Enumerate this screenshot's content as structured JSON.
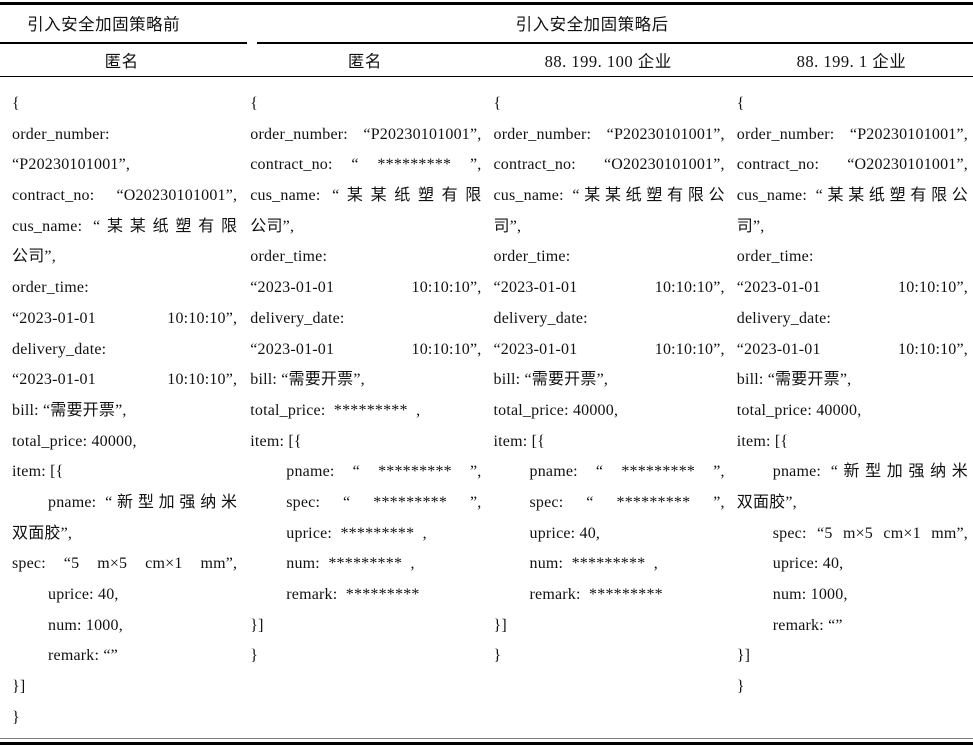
{
  "header": {
    "group_before": "引入安全加固策略前",
    "group_after": "引入安全加固策略后",
    "subheaders": [
      "匿名",
      "匿名",
      "88. 199. 100 企业",
      "88. 199. 1 企业"
    ]
  },
  "columns": [
    {
      "id": "before-anonymous",
      "lines": [
        {
          "t": "{"
        },
        {
          "t": "order_number:"
        },
        {
          "t": "“P20230101001”,"
        },
        {
          "t": "contract_no: “O20230101001”,",
          "j": true
        },
        {
          "t": "cus_name: “某某纸塑有限",
          "j": true
        },
        {
          "t": "公司”,"
        },
        {
          "t": "order_time:"
        },
        {
          "t": "“2023-01-01 10:10:10”,",
          "j": true
        },
        {
          "t": "delivery_date:"
        },
        {
          "t": "“2023-01-01 10:10:10”,",
          "j": true
        },
        {
          "t": "bill: “需要开票”,"
        },
        {
          "t": "total_price: 40000,"
        },
        {
          "t": "item: [{"
        },
        {
          "t": "pname: “新型加强纳米",
          "in": true,
          "j": true
        },
        {
          "t": "双面胶”,"
        },
        {
          "t": "spec: “5 m×5 cm×1 mm”,",
          "j": true
        },
        {
          "t": "uprice: 40,",
          "in": true
        },
        {
          "t": "num: 1000,",
          "in": true
        },
        {
          "t": "remark: “”",
          "in": true
        },
        {
          "t": "}]"
        },
        {
          "t": "}"
        }
      ]
    },
    {
      "id": "after-anonymous",
      "lines": [
        {
          "t": "{"
        },
        {
          "t": "order_number: “P20230101001”,",
          "j": true
        },
        {
          "t": "contract_no: “ ********* ”,",
          "j": true
        },
        {
          "t": "cus_name: “某某纸塑有限",
          "j": true
        },
        {
          "t": "公司”,"
        },
        {
          "t": "order_time:"
        },
        {
          "t": "“2023-01-01 10:10:10”,",
          "j": true
        },
        {
          "t": "delivery_date:"
        },
        {
          "t": "“2023-01-01 10:10:10”,",
          "j": true
        },
        {
          "t": "bill: “需要开票”,"
        },
        {
          "t": "total_price:  *********  ,"
        },
        {
          "t": "item: [{"
        },
        {
          "t": "pname: “ ********* ”,",
          "in": true,
          "j": true
        },
        {
          "t": "spec: “ ********* ”,",
          "in": true,
          "j": true
        },
        {
          "t": "uprice:  *********  ,",
          "in": true
        },
        {
          "t": "num:  *********  ,",
          "in": true
        },
        {
          "t": "remark:  *********",
          "in": true
        },
        {
          "t": "}]"
        },
        {
          "t": "}"
        }
      ]
    },
    {
      "id": "after-enterprise-88-199-100",
      "lines": [
        {
          "t": "{"
        },
        {
          "t": "order_number: “P20230101001”,",
          "j": true
        },
        {
          "t": "contract_no: “O20230101001”,",
          "j": true
        },
        {
          "t": "cus_name: “某某纸塑有限公",
          "j": true
        },
        {
          "t": "司”,"
        },
        {
          "t": "order_time:"
        },
        {
          "t": "“2023-01-01 10:10:10”,",
          "j": true
        },
        {
          "t": "delivery_date:"
        },
        {
          "t": "“2023-01-01 10:10:10”,",
          "j": true
        },
        {
          "t": "bill: “需要开票”,"
        },
        {
          "t": "total_price: 40000,"
        },
        {
          "t": "item: [{"
        },
        {
          "t": "pname: “ ********* ”,",
          "in": true,
          "j": true
        },
        {
          "t": "spec: “ ********* ”,",
          "in": true,
          "j": true
        },
        {
          "t": "uprice: 40,",
          "in": true
        },
        {
          "t": "num:  *********  ,",
          "in": true
        },
        {
          "t": "remark:  *********",
          "in": true
        },
        {
          "t": "}]"
        },
        {
          "t": "}"
        }
      ]
    },
    {
      "id": "after-enterprise-88-199-1",
      "lines": [
        {
          "t": "{"
        },
        {
          "t": "order_number: “P20230101001”,",
          "j": true
        },
        {
          "t": "contract_no: “O20230101001”,",
          "j": true
        },
        {
          "t": "cus_name: “某某纸塑有限公",
          "j": true
        },
        {
          "t": "司”,"
        },
        {
          "t": "order_time:"
        },
        {
          "t": "“2023-01-01 10:10:10”,",
          "j": true
        },
        {
          "t": "delivery_date:"
        },
        {
          "t": "“2023-01-01 10:10:10”,",
          "j": true
        },
        {
          "t": "bill: “需要开票”,"
        },
        {
          "t": "total_price: 40000,"
        },
        {
          "t": "item: [{"
        },
        {
          "t": "pname: “新型加强纳米",
          "in": true,
          "j": true
        },
        {
          "t": "双面胶”,"
        },
        {
          "t": "spec: “5 m×5 cm×1 mm”,",
          "in": true,
          "j": true
        },
        {
          "t": "uprice: 40,",
          "in": true
        },
        {
          "t": "num: 1000,",
          "in": true
        },
        {
          "t": "remark: “”",
          "in": true
        },
        {
          "t": "}]"
        },
        {
          "t": "}"
        }
      ]
    }
  ],
  "rule_colors": {
    "main": "#000000",
    "bottom_thin": "#7d7d7d"
  }
}
